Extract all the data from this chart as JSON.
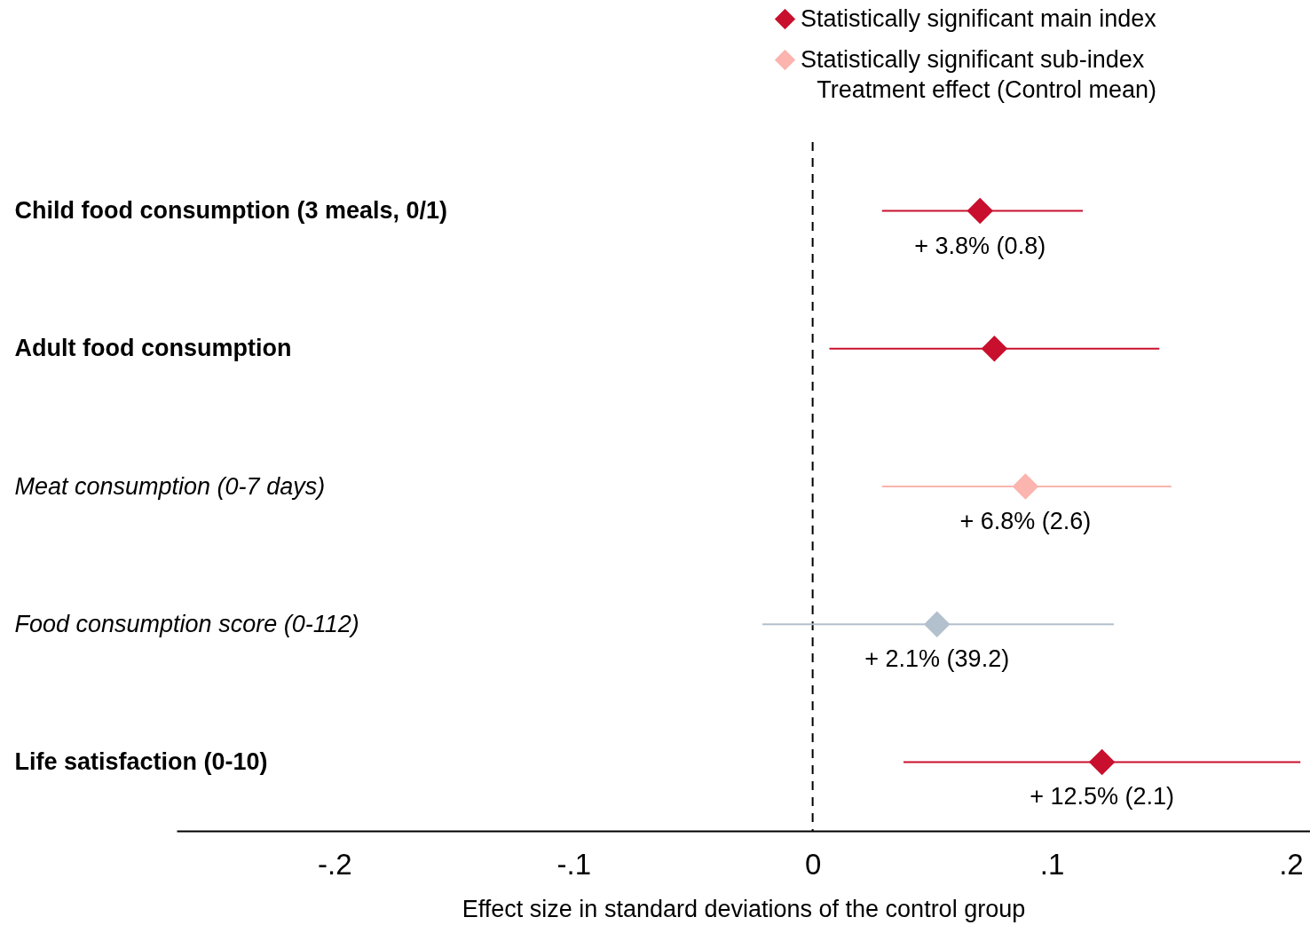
{
  "chart_data": {
    "type": "scatter",
    "orientation": "horizontal",
    "marker": "diamond",
    "legend": "top right",
    "grid": false,
    "legend_title": "Treatment effect (Control mean)",
    "xlabel": "Effect size in standard deviations of the control group",
    "categories": [
      "Child food consumption (3 meals, 0/1)",
      "Adult food consumption",
      "Meat consumption (0-7 days)",
      "Food consumption score (0-112)",
      "Life satisfaction (0-10)"
    ],
    "xlim": [
      -0.266,
      0.208
    ],
    "xticks": [
      {
        "value": -0.2,
        "label": "-.2"
      },
      {
        "value": -0.1,
        "label": "-.1"
      },
      0,
      {
        "value": 0.1,
        "label": ".1"
      },
      {
        "value": 0.2,
        "label": ".2"
      }
    ],
    "ref_lines": [
      {
        "axis": "x",
        "value": 0,
        "color": "#000000",
        "line_style": "dashed"
      }
    ],
    "series": [
      {
        "name": "Statistically significant main index",
        "color": "#c8102e",
        "values": [
          0.07,
          0.076,
          null,
          null,
          0.121
        ],
        "errors": [
          [
            0.029,
            0.113
          ],
          [
            0.007,
            0.145
          ],
          null,
          null,
          [
            0.038,
            0.204
          ]
        ],
        "value_labels": [
          "+ 3.8% (0.8)",
          null,
          null,
          null,
          "+ 12.5% (2.1)"
        ]
      },
      {
        "name": "Statistically significant sub-index",
        "color": "#fbb4ae",
        "values": [
          null,
          null,
          0.089,
          null,
          null
        ],
        "errors": [
          null,
          null,
          [
            0.029,
            0.15
          ],
          null,
          null
        ],
        "value_labels": [
          null,
          null,
          "+ 6.8% (2.6)",
          null,
          null
        ]
      },
      {
        "color": "#b3c0cd",
        "values": [
          null,
          null,
          null,
          0.052,
          null
        ],
        "errors": [
          null,
          null,
          null,
          [
            -0.021,
            0.126
          ],
          null
        ],
        "value_labels": [
          null,
          null,
          null,
          "+ 2.1% (39.2)",
          null
        ]
      }
    ]
  }
}
